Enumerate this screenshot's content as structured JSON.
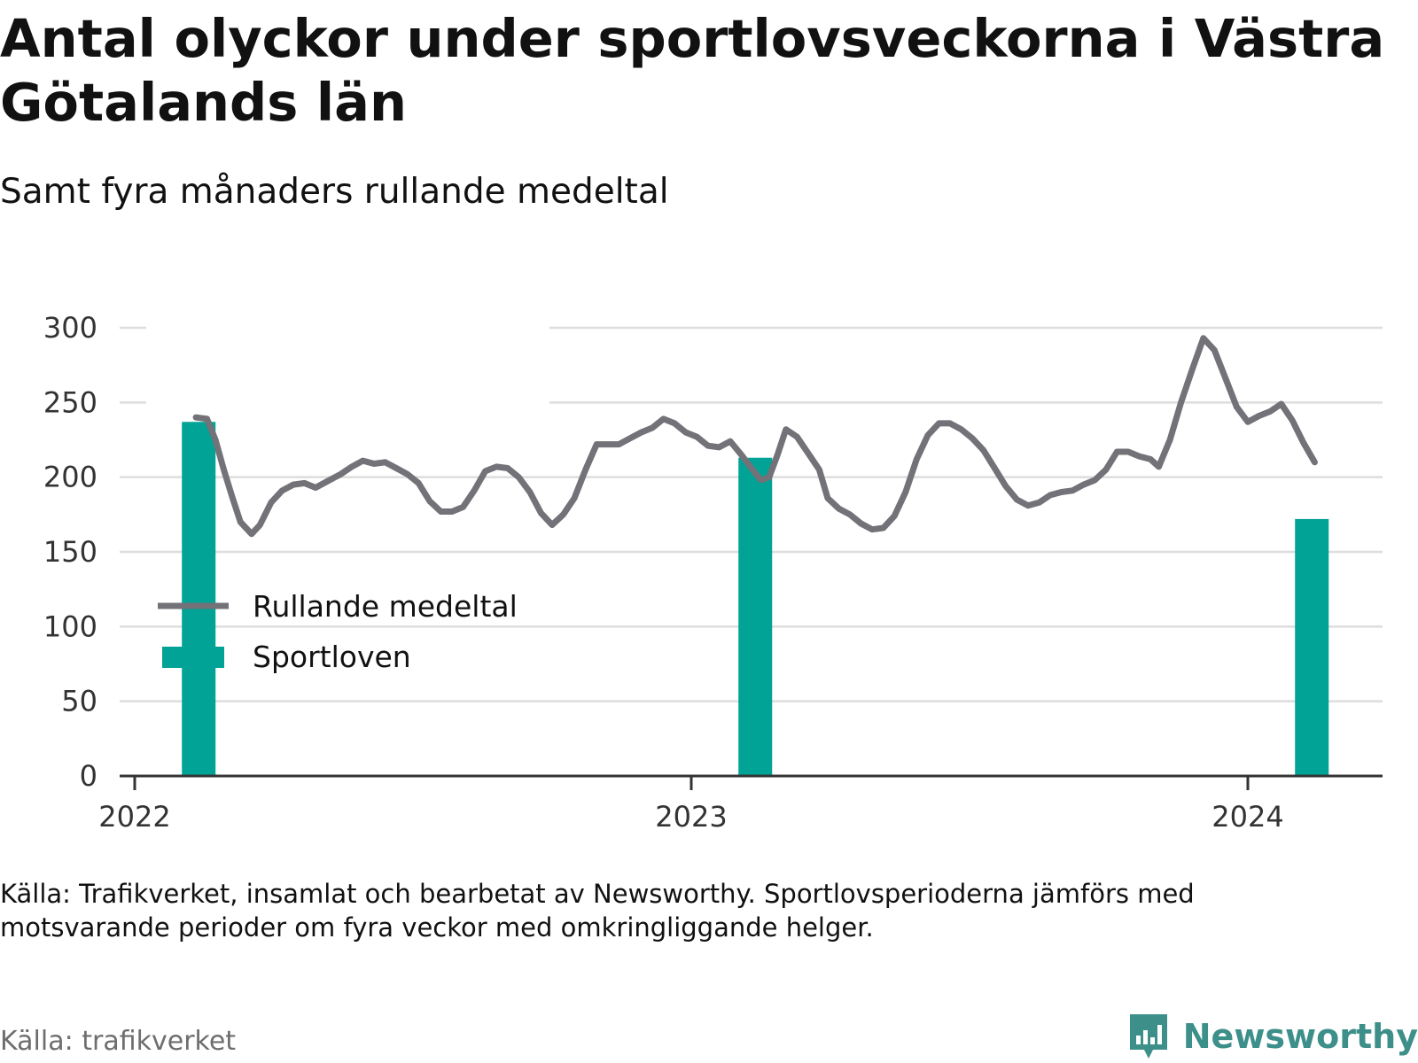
{
  "title": "Antal olyckor under sportlovsveckorna i Västra Götalands län",
  "subtitle": "Samt fyra månaders rullande medeltal",
  "footnote": "Källa: Trafikverket, insamlat och bearbetat av Newsworthy. Sportlovsperioderna jämförs med motsvarande perioder om fyra veckor med omkringliggande helger.",
  "source": "Källa: trafikverket",
  "brand": "Newsworthy",
  "colors": {
    "line": "#727278",
    "bar": "#00a396",
    "grid": "#dddddd",
    "axis": "#333333",
    "brand": "#3d8f8a"
  },
  "chart_data": {
    "type": "bar+line",
    "ylim": [
      0,
      300
    ],
    "yticks": [
      0,
      50,
      100,
      150,
      200,
      250,
      300
    ],
    "xlim": [
      2022.0,
      2024.25
    ],
    "xticks": [
      2022,
      2023,
      2024
    ],
    "xtick_labels": [
      "2022",
      "2023",
      "2024"
    ],
    "grid": true,
    "legend_position": "top-left",
    "legend": [
      {
        "label": "Rullande medeltal",
        "kind": "line"
      },
      {
        "label": "Sportloven",
        "kind": "bar"
      }
    ],
    "bars": {
      "name": "Sportloven",
      "x": [
        2022.115,
        2023.115,
        2024.115
      ],
      "values": [
        237,
        213,
        172
      ]
    },
    "line": {
      "name": "Rullande medeltal",
      "points": [
        [
          2022.11,
          240
        ],
        [
          2022.13,
          239
        ],
        [
          2022.145,
          225
        ],
        [
          2022.16,
          205
        ],
        [
          2022.175,
          187
        ],
        [
          2022.19,
          170
        ],
        [
          2022.21,
          162
        ],
        [
          2022.225,
          168
        ],
        [
          2022.245,
          183
        ],
        [
          2022.265,
          191
        ],
        [
          2022.285,
          195
        ],
        [
          2022.305,
          196
        ],
        [
          2022.325,
          193
        ],
        [
          2022.35,
          198
        ],
        [
          2022.37,
          202
        ],
        [
          2022.39,
          207
        ],
        [
          2022.41,
          211
        ],
        [
          2022.43,
          209
        ],
        [
          2022.45,
          210
        ],
        [
          2022.47,
          206
        ],
        [
          2022.49,
          202
        ],
        [
          2022.51,
          196
        ],
        [
          2022.53,
          184
        ],
        [
          2022.55,
          177
        ],
        [
          2022.57,
          177
        ],
        [
          2022.59,
          180
        ],
        [
          2022.61,
          191
        ],
        [
          2022.63,
          204
        ],
        [
          2022.65,
          207
        ],
        [
          2022.67,
          206
        ],
        [
          2022.69,
          200
        ],
        [
          2022.71,
          190
        ],
        [
          2022.73,
          176
        ],
        [
          2022.75,
          168
        ],
        [
          2022.77,
          175
        ],
        [
          2022.79,
          186
        ],
        [
          2022.81,
          205
        ],
        [
          2022.83,
          222
        ],
        [
          2022.85,
          222
        ],
        [
          2022.87,
          222
        ],
        [
          2022.89,
          226
        ],
        [
          2022.91,
          230
        ],
        [
          2022.93,
          233
        ],
        [
          2022.95,
          239
        ],
        [
          2022.97,
          236
        ],
        [
          2022.99,
          230
        ],
        [
          2023.01,
          227
        ],
        [
          2023.03,
          221
        ],
        [
          2023.05,
          220
        ],
        [
          2023.07,
          224
        ],
        [
          2023.09,
          215
        ],
        [
          2023.11,
          205
        ],
        [
          2023.125,
          198
        ],
        [
          2023.14,
          200
        ],
        [
          2023.155,
          215
        ],
        [
          2023.17,
          232
        ],
        [
          2023.19,
          227
        ],
        [
          2023.21,
          216
        ],
        [
          2023.23,
          205
        ],
        [
          2023.245,
          186
        ],
        [
          2023.265,
          179
        ],
        [
          2023.285,
          175
        ],
        [
          2023.305,
          169
        ],
        [
          2023.325,
          165
        ],
        [
          2023.345,
          166
        ],
        [
          2023.365,
          174
        ],
        [
          2023.385,
          190
        ],
        [
          2023.405,
          212
        ],
        [
          2023.425,
          228
        ],
        [
          2023.445,
          236
        ],
        [
          2023.465,
          236
        ],
        [
          2023.485,
          232
        ],
        [
          2023.505,
          226
        ],
        [
          2023.525,
          218
        ],
        [
          2023.545,
          206
        ],
        [
          2023.565,
          194
        ],
        [
          2023.585,
          185
        ],
        [
          2023.605,
          181
        ],
        [
          2023.625,
          183
        ],
        [
          2023.645,
          188
        ],
        [
          2023.665,
          190
        ],
        [
          2023.685,
          191
        ],
        [
          2023.705,
          195
        ],
        [
          2023.725,
          198
        ],
        [
          2023.745,
          205
        ],
        [
          2023.765,
          217
        ],
        [
          2023.785,
          217
        ],
        [
          2023.805,
          214
        ],
        [
          2023.825,
          212
        ],
        [
          2023.84,
          207
        ],
        [
          2023.86,
          225
        ],
        [
          2023.88,
          250
        ],
        [
          2023.9,
          272
        ],
        [
          2023.92,
          293
        ],
        [
          2023.94,
          285
        ],
        [
          2023.96,
          266
        ],
        [
          2023.98,
          247
        ],
        [
          2024.0,
          237
        ],
        [
          2024.02,
          241
        ],
        [
          2024.04,
          244
        ],
        [
          2024.06,
          249
        ],
        [
          2024.08,
          238
        ],
        [
          2024.1,
          223
        ],
        [
          2024.12,
          210
        ]
      ]
    }
  }
}
